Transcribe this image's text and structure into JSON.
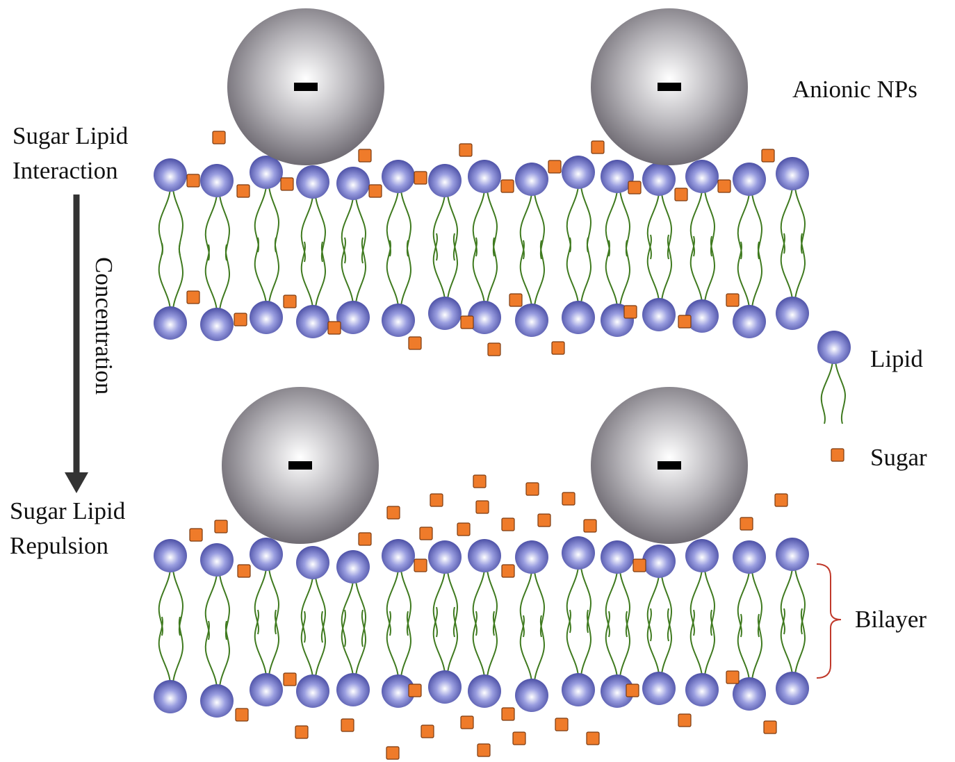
{
  "labels": {
    "top_state": [
      "Sugar Lipid",
      "Interaction"
    ],
    "axis": "Concentration",
    "bottom_state": [
      "Sugar Lipid",
      "Repulsion"
    ],
    "nanoparticles": "Anionic NPs",
    "lipid": "Lipid",
    "sugar": "Sugar",
    "bilayer": "Bilayer"
  }
}
